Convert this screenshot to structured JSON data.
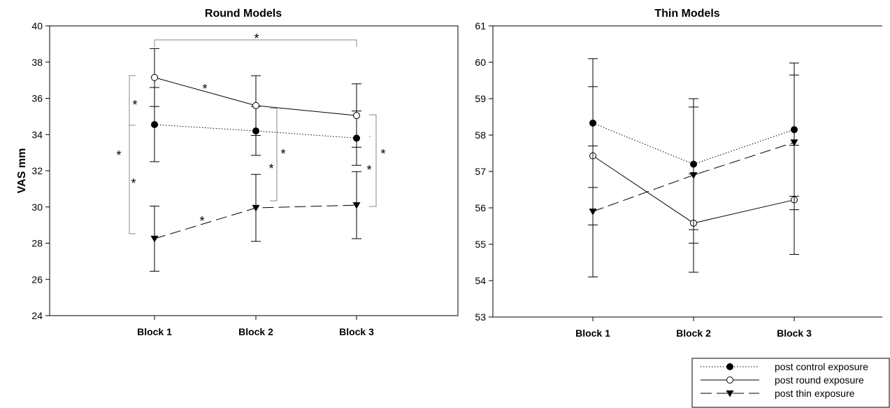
{
  "chart_data": [
    {
      "type": "line",
      "title": "Round Models",
      "ylabel": "VAS mm",
      "xlabel": "",
      "categories": [
        "Block 1",
        "Block 2",
        "Block 3"
      ],
      "ylim": [
        24,
        40
      ],
      "yticks": [
        24,
        26,
        28,
        30,
        32,
        34,
        36,
        38,
        40
      ],
      "frame": "box",
      "series": [
        {
          "name": "post control exposure",
          "marker": "filled-circle",
          "line": "dotted",
          "values": [
            34.55,
            34.2,
            33.8
          ],
          "errors": [
            2.05,
            1.35,
            1.5
          ]
        },
        {
          "name": "post round exposure",
          "marker": "open-circle",
          "line": "solid",
          "values": [
            37.15,
            35.6,
            35.05
          ],
          "errors": [
            1.6,
            1.65,
            1.75
          ]
        },
        {
          "name": "post thin exposure",
          "marker": "filled-triangle-down",
          "line": "dashed",
          "values": [
            28.25,
            29.95,
            30.1
          ],
          "errors": [
            1.8,
            1.85,
            1.85
          ]
        }
      ],
      "annotations": [
        "*",
        "*",
        "*",
        "*",
        "*",
        "*",
        "*",
        "*",
        "*",
        "*"
      ]
    },
    {
      "type": "line",
      "title": "Thin Models",
      "ylabel": "",
      "xlabel": "",
      "categories": [
        "Block 1",
        "Block 2",
        "Block 3"
      ],
      "ylim": [
        53,
        61
      ],
      "yticks": [
        53,
        54,
        55,
        56,
        57,
        58,
        59,
        60,
        61
      ],
      "frame": "left-bottom",
      "series": [
        {
          "name": "post control exposure",
          "marker": "filled-circle",
          "line": "dotted",
          "values": [
            58.33,
            57.2,
            58.15
          ],
          "errors": [
            1.77,
            1.8,
            1.83
          ]
        },
        {
          "name": "post round exposure",
          "marker": "open-circle",
          "line": "solid",
          "values": [
            57.43,
            55.58,
            56.22
          ],
          "errors": [
            1.9,
            1.35,
            1.5
          ]
        },
        {
          "name": "post thin exposure",
          "marker": "filled-triangle-down",
          "line": "dashed",
          "values": [
            55.9,
            56.9,
            57.8
          ],
          "errors": [
            1.8,
            1.87,
            1.85
          ]
        }
      ]
    }
  ],
  "legend": {
    "placement": "bottom-right",
    "entries": [
      "post control exposure",
      "post round exposure",
      "post thin exposure"
    ]
  }
}
